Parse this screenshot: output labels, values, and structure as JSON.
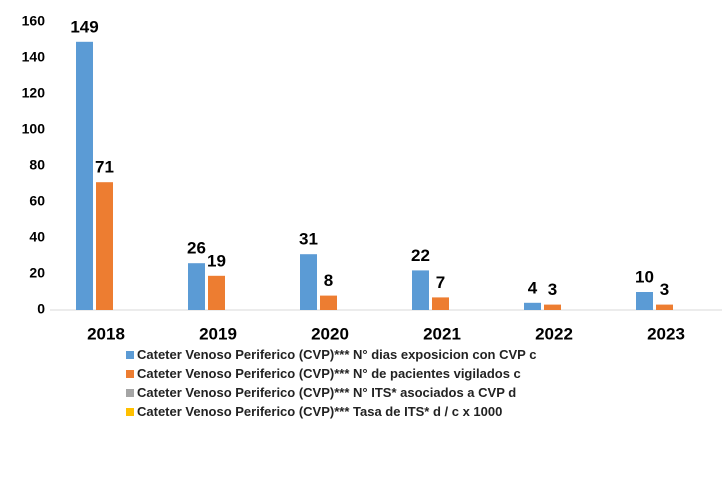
{
  "chart_data": {
    "type": "bar",
    "categories": [
      "2018",
      "2019",
      "2020",
      "2021",
      "2022",
      "2023"
    ],
    "series": [
      {
        "name": "Cateter Venoso Periferico (CVP)*** N° dias exposicion con CVP c",
        "color": "#5b9bd5",
        "values": [
          149,
          26,
          31,
          22,
          4,
          10
        ]
      },
      {
        "name": "Cateter Venoso Periferico (CVP)*** N° de pacientes vigilados c",
        "color": "#ed7d31",
        "values": [
          71,
          19,
          8,
          7,
          3,
          3
        ]
      },
      {
        "name": "Cateter Venoso Periferico (CVP)*** N° ITS* asociados a CVP d",
        "color": "#a5a5a5",
        "values": [
          0,
          0,
          0,
          0,
          0,
          0
        ]
      },
      {
        "name": "Cateter Venoso Periferico (CVP)*** Tasa de ITS*  d / c x 1000",
        "color": "#ffc000",
        "values": [
          0,
          0,
          0,
          0,
          0,
          0
        ]
      }
    ],
    "data_labels_series": [
      0,
      1
    ],
    "ylim": [
      0,
      160
    ],
    "yticks": [
      0,
      20,
      40,
      60,
      80,
      100,
      120,
      140,
      160
    ],
    "grid": false,
    "legend": "bottom"
  }
}
